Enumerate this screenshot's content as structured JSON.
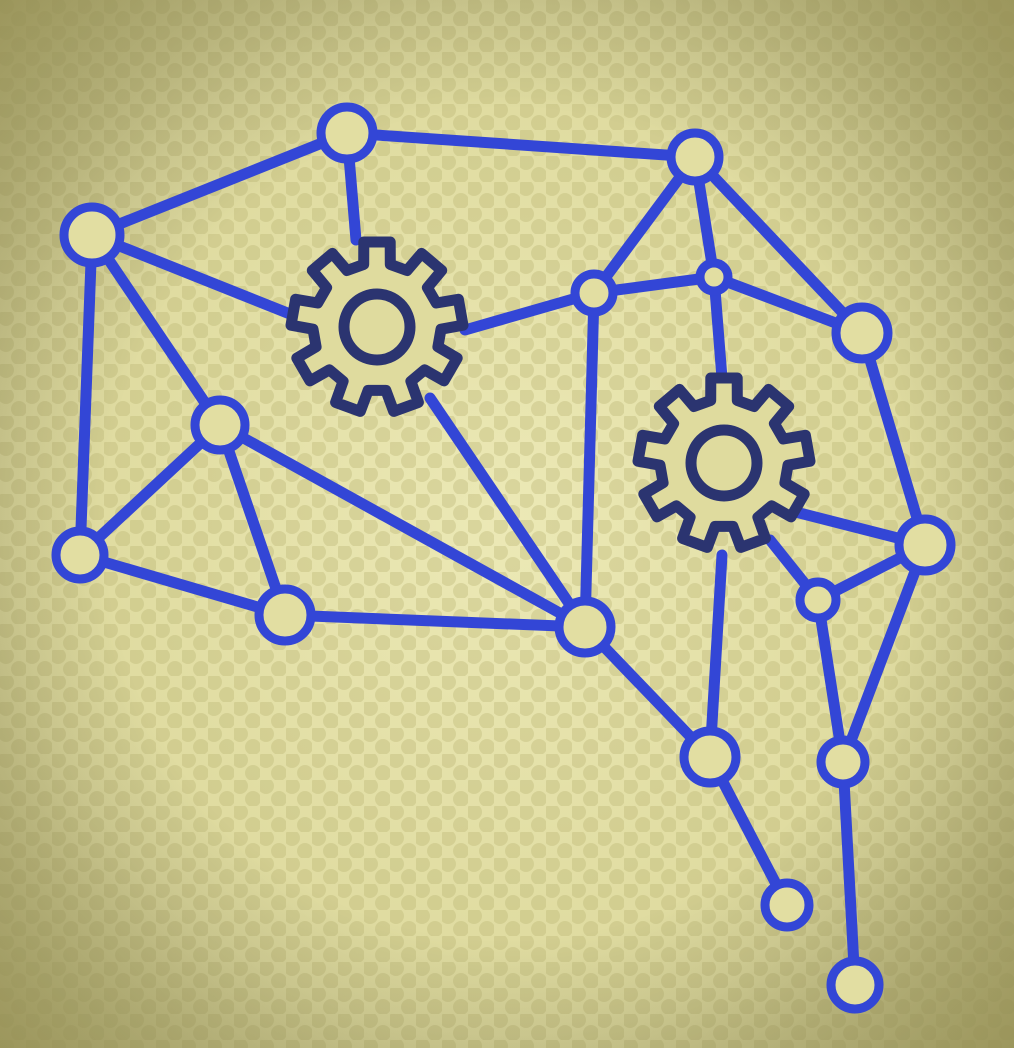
{
  "illustration": {
    "subject": "brain-network-with-gears",
    "icons": [
      "gear-icon",
      "gear-icon"
    ]
  },
  "colors": {
    "background_light": "#e6e3a8",
    "background_mid": "#cfcb8c",
    "background_dot": "#b3ad6a",
    "background_edge": "#8f894d",
    "line": "#3346d6",
    "gear": "#2b3470"
  }
}
